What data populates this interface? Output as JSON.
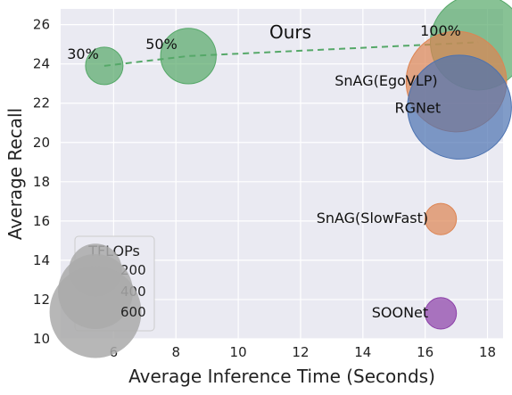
{
  "chart_data": {
    "type": "scatter",
    "xlabel": "Average Inference Time (Seconds)",
    "ylabel": "Average Recall",
    "xlim": [
      4.3,
      18.5
    ],
    "ylim": [
      10,
      26.8
    ],
    "xticks": [
      "6",
      "8",
      "10",
      "12",
      "14",
      "16",
      "18"
    ],
    "yticks": [
      "10",
      "12",
      "14",
      "16",
      "18",
      "20",
      "22",
      "24",
      "26"
    ],
    "grid": true,
    "ours_label": "Ours",
    "ours_line_color": "#55a868",
    "points": [
      {
        "label": "30%",
        "x": 5.7,
        "y": 23.9,
        "tflops": 100,
        "color": "#55a868"
      },
      {
        "label": "50%",
        "x": 8.4,
        "y": 24.4,
        "tflops": 220,
        "color": "#55a868"
      },
      {
        "label": "100%",
        "x": 17.7,
        "y": 25.1,
        "tflops": 650,
        "color": "#55a868"
      },
      {
        "label": "SnAG(EgoVLP)",
        "x": 17.0,
        "y": 23.1,
        "tflops": 720,
        "color": "#dd8452"
      },
      {
        "label": "RGNet",
        "x": 17.1,
        "y": 21.8,
        "tflops": 770,
        "color": "#4c72b0"
      },
      {
        "label": "SnAG(SlowFast)",
        "x": 16.5,
        "y": 16.1,
        "tflops": 70,
        "color": "#dd8452"
      },
      {
        "label": "SOONet",
        "x": 16.5,
        "y": 11.3,
        "tflops": 70,
        "color": "#8c3fa8"
      }
    ],
    "legend": {
      "title": "TFLOPs",
      "placement": "lower-left",
      "entries": [
        {
          "label": "200",
          "tflops": 200
        },
        {
          "label": "400",
          "tflops": 400
        },
        {
          "label": "600",
          "tflops": 600
        }
      ]
    }
  }
}
